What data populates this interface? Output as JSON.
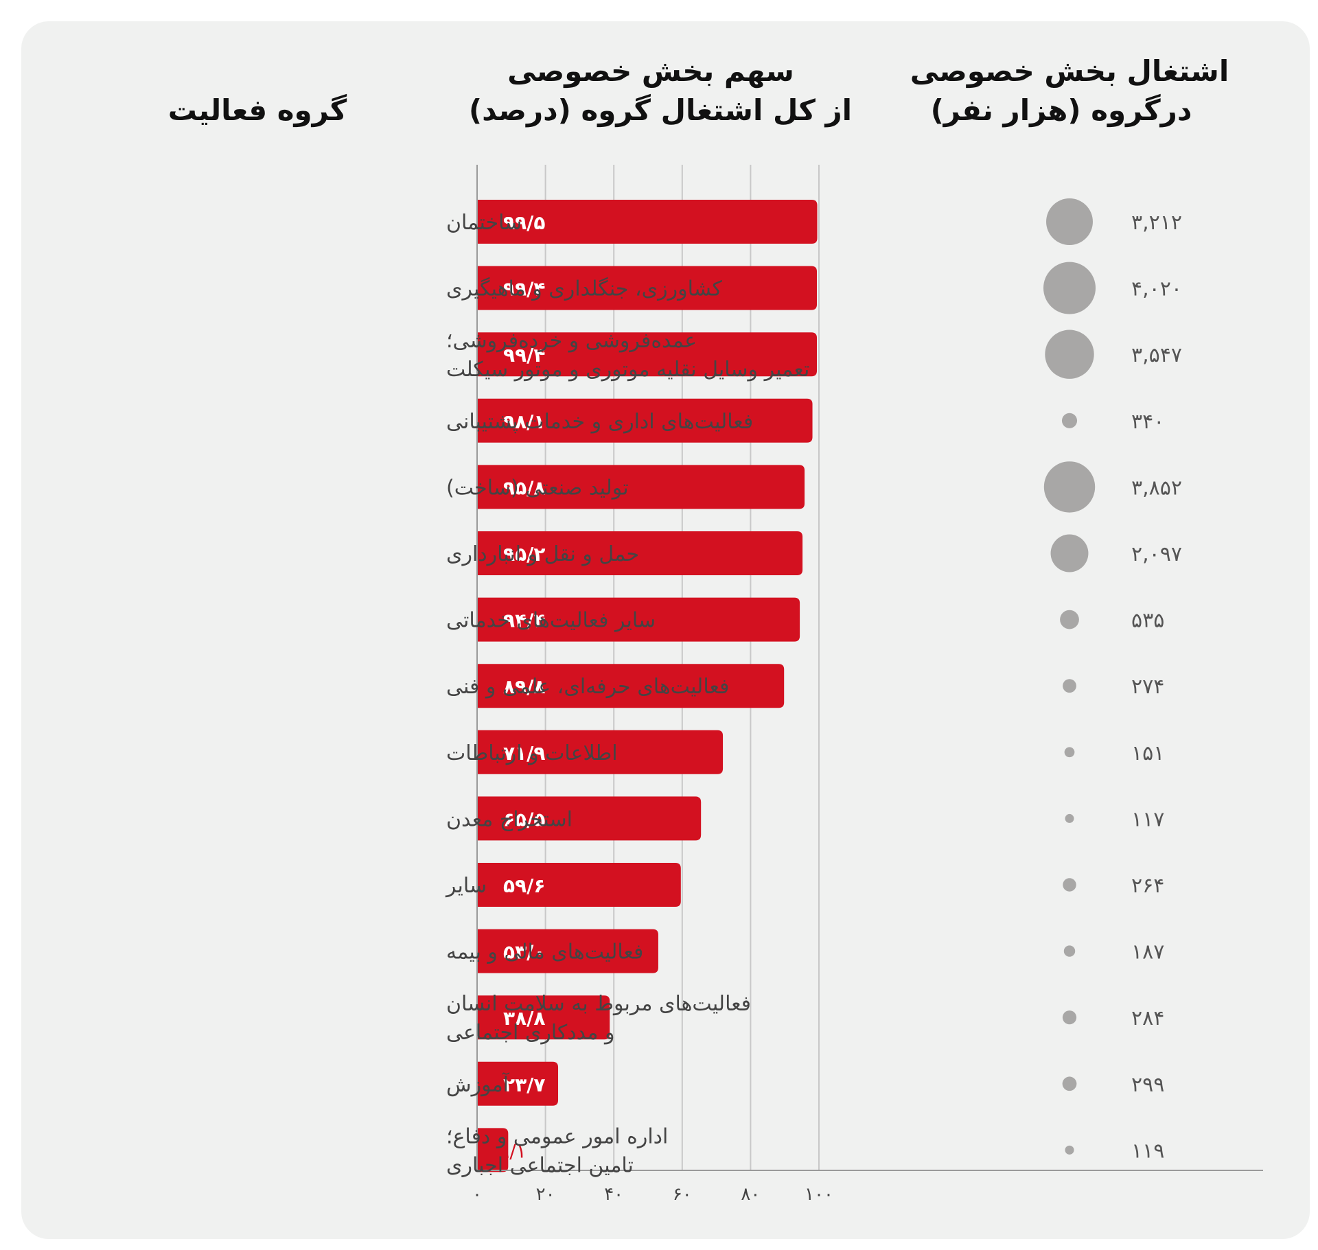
{
  "headers": {
    "activity": "گروه فعالیت",
    "share_line1": "سهم بخش خصوصی",
    "share_line2": "از کل اشتغال گروه (درصد)",
    "employment_line1": "اشتغال بخش خصوصی",
    "employment_line2": "درگروه (هزار نفر)"
  },
  "colors": {
    "bar": "#d31120",
    "bubble": "#a8a7a6",
    "grid": "#c8c8c8",
    "axis": "#9a9a9a"
  },
  "chart_data": {
    "type": "bar",
    "orientation": "horizontal",
    "xlim": [
      0,
      100
    ],
    "x_ticks": [
      0,
      20,
      40,
      60,
      80,
      100
    ],
    "x_tick_labels": [
      "۰",
      "۲۰",
      "۴۰",
      "۶۰",
      "۸۰",
      "۱۰۰"
    ],
    "grid": true,
    "categories": [
      [
        "ساختمان"
      ],
      [
        "کشاورزی، جنگلداری و ماهیگیری"
      ],
      [
        "عمده‌فروشی و خرده‌فروشی؛",
        "تعمیر وسایل نقلیه موتوری و موتور سیکلت"
      ],
      [
        "فعالیت‌های اداری و خدمات پشتیبانی"
      ],
      [
        "تولید صنعتی (ساخت)"
      ],
      [
        "حمل و نقل و انبارداری"
      ],
      [
        "سایر فعالیت‌های خدماتی"
      ],
      [
        "فعالیت‌های حرفه‌ای، علمی و فنی"
      ],
      [
        "اطلاعات و ارتباطات"
      ],
      [
        "استخراج معدن"
      ],
      [
        "سایر"
      ],
      [
        "فعالیت‌های مالی و بیمه"
      ],
      [
        "فعالیت‌های مربوط به سلامت انسان",
        "و مددکاری اجتماعی"
      ],
      [
        "آموزش"
      ],
      [
        "اداره امور عمومی و دفاع؛",
        "تامین اجتماعی اجباری"
      ]
    ],
    "values": [
      99.5,
      99.4,
      99.4,
      98.1,
      95.8,
      95.2,
      94.4,
      89.8,
      71.9,
      65.5,
      59.6,
      53.0,
      38.8,
      23.7,
      9.1
    ],
    "value_labels": [
      "۹۹/۵",
      "۹۹/۴",
      "۹۹/۴",
      "۹۸/۱",
      "۹۵/۸",
      "۹۵/۲",
      "۹۴/۴",
      "۸۹/۸",
      "۷۱/۹",
      "۶۵/۵",
      "۵۹/۶",
      "۵۳/۰",
      "۳۸/۸",
      "۲۳/۷",
      "۹/۱"
    ],
    "bubble_series": {
      "unit": "هزار نفر",
      "values": [
        3212,
        4020,
        3547,
        340,
        3852,
        2097,
        535,
        274,
        151,
        117,
        264,
        187,
        284,
        299,
        119
      ],
      "labels": [
        "۳,۲۱۲",
        "۴,۰۲۰",
        "۳,۵۴۷",
        "۳۴۰",
        "۳,۸۵۲",
        "۲,۰۹۷",
        "۵۳۵",
        "۲۷۴",
        "۱۵۱",
        "۱۱۷",
        "۲۶۴",
        "۱۸۷",
        "۲۸۴",
        "۲۹۹",
        "۱۱۹"
      ]
    }
  }
}
